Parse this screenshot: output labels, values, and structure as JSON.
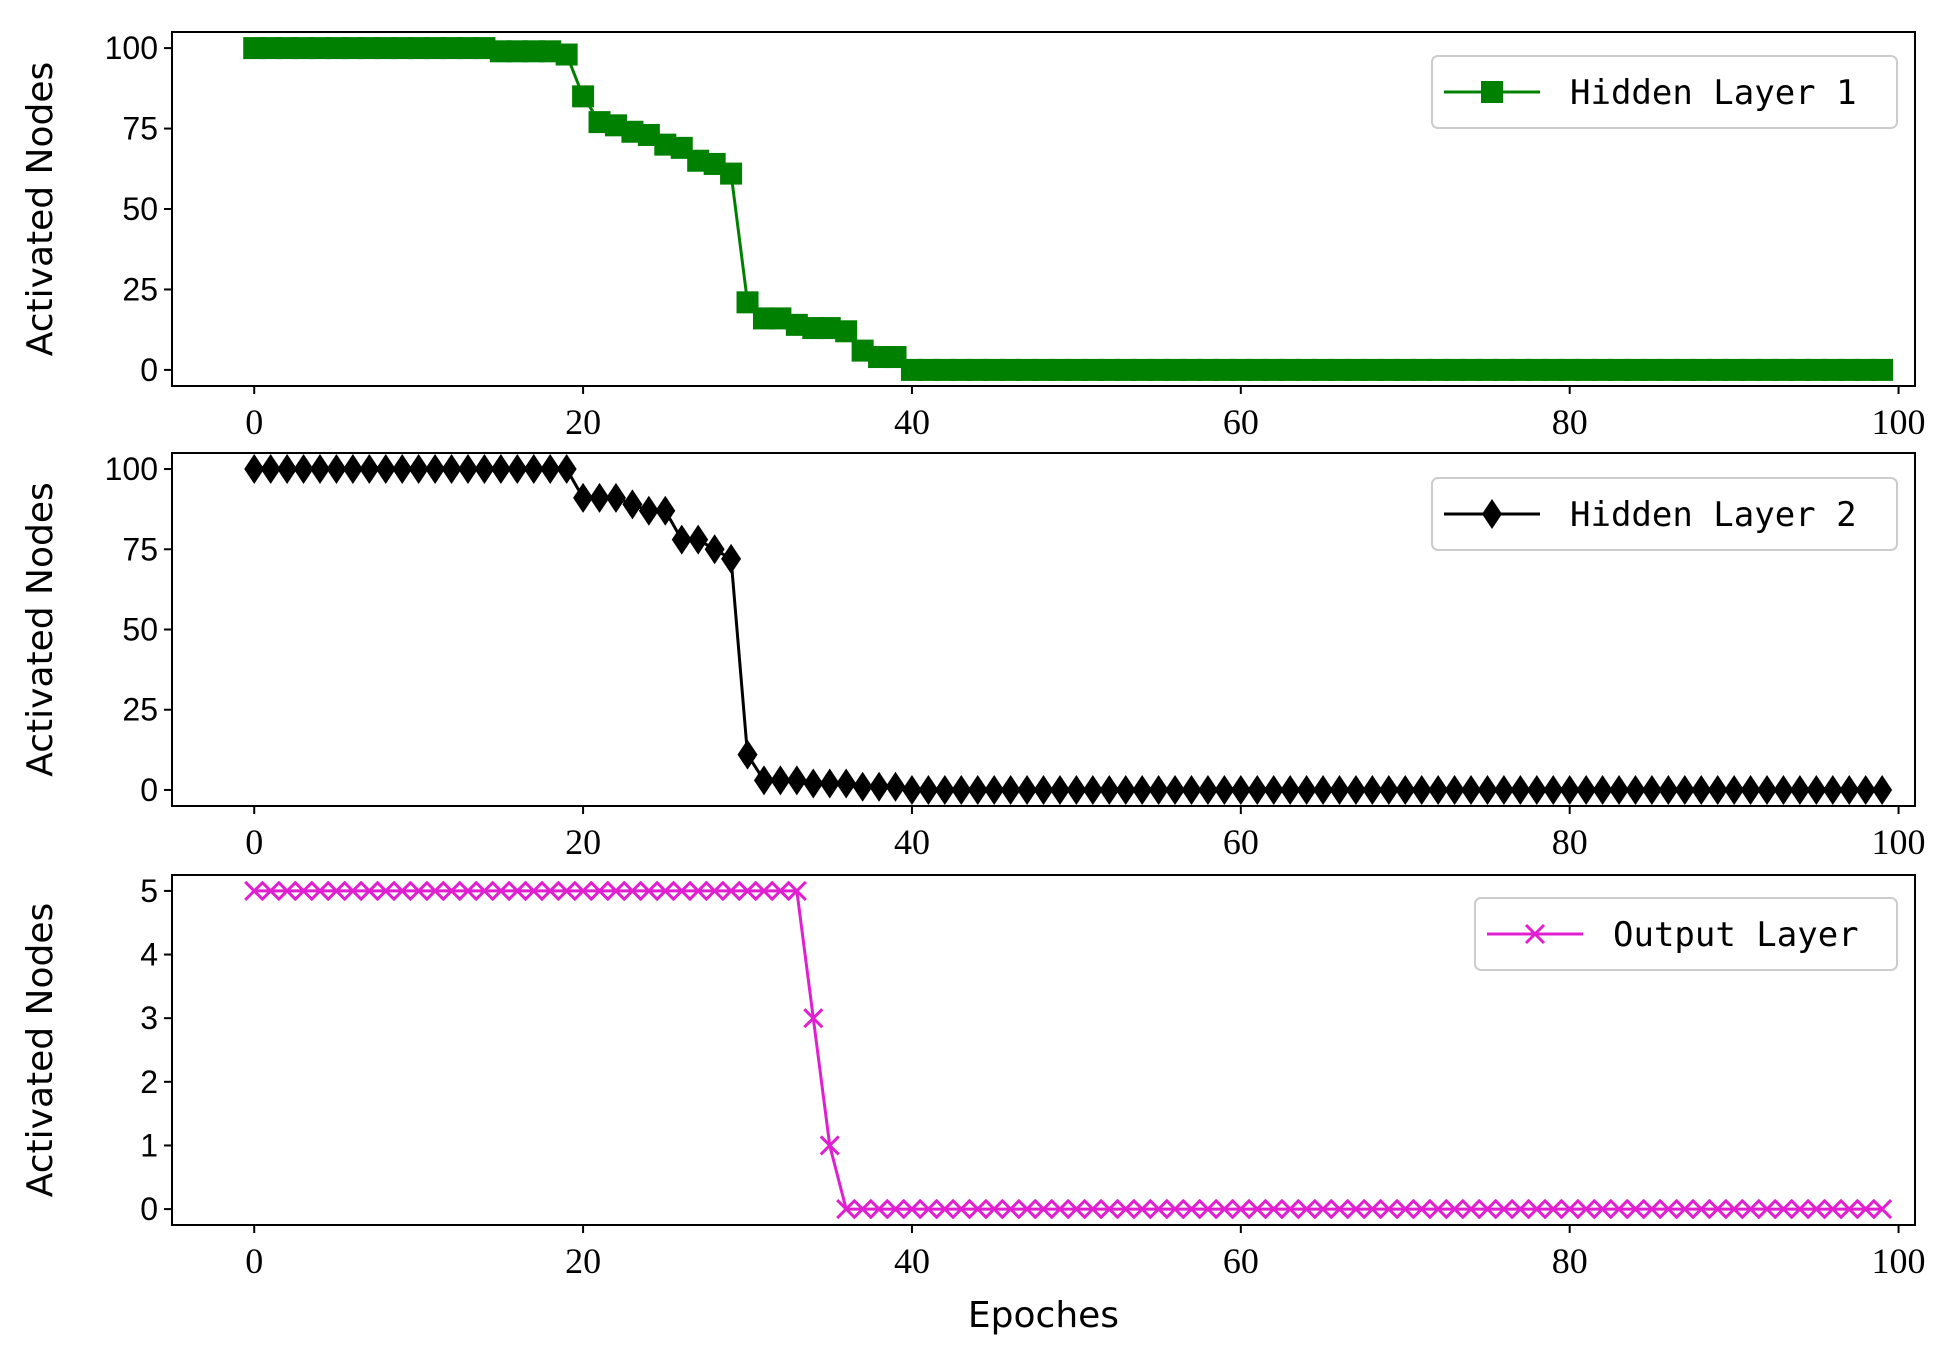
{
  "chart_data": [
    {
      "type": "line",
      "title": "",
      "xlabel": "",
      "ylabel": "Activated Nodes",
      "xlim": [
        -5,
        101
      ],
      "ylim": [
        -5,
        105
      ],
      "xticks": [
        0,
        20,
        40,
        60,
        80,
        100
      ],
      "yticks": [
        0,
        25,
        50,
        75,
        100
      ],
      "grid": false,
      "legend_position": "top-right",
      "series": [
        {
          "name": "Hidden Layer 1",
          "color": "#008000",
          "marker": "square",
          "x": [
            0,
            1,
            2,
            3,
            4,
            5,
            6,
            7,
            8,
            9,
            10,
            11,
            12,
            13,
            14,
            15,
            16,
            17,
            18,
            19,
            20,
            21,
            22,
            23,
            24,
            25,
            26,
            27,
            28,
            29,
            30,
            31,
            32,
            33,
            34,
            35,
            36,
            37,
            38,
            39,
            40,
            41,
            42,
            43,
            44,
            45,
            46,
            47,
            48,
            49,
            50,
            51,
            52,
            53,
            54,
            55,
            56,
            57,
            58,
            59,
            60,
            61,
            62,
            63,
            64,
            65,
            66,
            67,
            68,
            69,
            70,
            71,
            72,
            73,
            74,
            75,
            76,
            77,
            78,
            79,
            80,
            81,
            82,
            83,
            84,
            85,
            86,
            87,
            88,
            89,
            90,
            91,
            92,
            93,
            94,
            95,
            96,
            97,
            98,
            99
          ],
          "values": [
            100,
            100,
            100,
            100,
            100,
            100,
            100,
            100,
            100,
            100,
            100,
            100,
            100,
            100,
            100,
            99,
            99,
            99,
            99,
            98,
            85,
            77,
            76,
            74,
            73,
            70,
            69,
            65,
            64,
            61,
            21,
            16,
            16,
            14,
            13,
            13,
            12,
            6,
            4,
            4,
            0,
            0,
            0,
            0,
            0,
            0,
            0,
            0,
            0,
            0,
            0,
            0,
            0,
            0,
            0,
            0,
            0,
            0,
            0,
            0,
            0,
            0,
            0,
            0,
            0,
            0,
            0,
            0,
            0,
            0,
            0,
            0,
            0,
            0,
            0,
            0,
            0,
            0,
            0,
            0,
            0,
            0,
            0,
            0,
            0,
            0,
            0,
            0,
            0,
            0,
            0,
            0,
            0,
            0,
            0,
            0,
            0,
            0,
            0,
            0
          ]
        }
      ]
    },
    {
      "type": "line",
      "title": "",
      "xlabel": "",
      "ylabel": "Activated Nodes",
      "xlim": [
        -5,
        101
      ],
      "ylim": [
        -5,
        105
      ],
      "xticks": [
        0,
        20,
        40,
        60,
        80,
        100
      ],
      "yticks": [
        0,
        25,
        50,
        75,
        100
      ],
      "grid": false,
      "legend_position": "top-right",
      "series": [
        {
          "name": "Hidden Layer 2",
          "color": "#000000",
          "marker": "diamond",
          "x": [
            0,
            1,
            2,
            3,
            4,
            5,
            6,
            7,
            8,
            9,
            10,
            11,
            12,
            13,
            14,
            15,
            16,
            17,
            18,
            19,
            20,
            21,
            22,
            23,
            24,
            25,
            26,
            27,
            28,
            29,
            30,
            31,
            32,
            33,
            34,
            35,
            36,
            37,
            38,
            39,
            40,
            41,
            42,
            43,
            44,
            45,
            46,
            47,
            48,
            49,
            50,
            51,
            52,
            53,
            54,
            55,
            56,
            57,
            58,
            59,
            60,
            61,
            62,
            63,
            64,
            65,
            66,
            67,
            68,
            69,
            70,
            71,
            72,
            73,
            74,
            75,
            76,
            77,
            78,
            79,
            80,
            81,
            82,
            83,
            84,
            85,
            86,
            87,
            88,
            89,
            90,
            91,
            92,
            93,
            94,
            95,
            96,
            97,
            98,
            99
          ],
          "values": [
            100,
            100,
            100,
            100,
            100,
            100,
            100,
            100,
            100,
            100,
            100,
            100,
            100,
            100,
            100,
            100,
            100,
            100,
            100,
            100,
            91,
            91,
            91,
            89,
            87,
            87,
            78,
            78,
            75,
            72,
            11,
            3,
            3,
            3,
            2,
            2,
            2,
            1,
            1,
            1,
            0,
            0,
            0,
            0,
            0,
            0,
            0,
            0,
            0,
            0,
            0,
            0,
            0,
            0,
            0,
            0,
            0,
            0,
            0,
            0,
            0,
            0,
            0,
            0,
            0,
            0,
            0,
            0,
            0,
            0,
            0,
            0,
            0,
            0,
            0,
            0,
            0,
            0,
            0,
            0,
            0,
            0,
            0,
            0,
            0,
            0,
            0,
            0,
            0,
            0,
            0,
            0,
            0,
            0,
            0,
            0,
            0,
            0,
            0,
            0
          ]
        }
      ]
    },
    {
      "type": "line",
      "title": "",
      "xlabel": "Epoches",
      "ylabel": "Activated Nodes",
      "xlim": [
        -5,
        101
      ],
      "ylim": [
        -0.25,
        5.25
      ],
      "xticks": [
        0,
        20,
        40,
        60,
        80,
        100
      ],
      "yticks": [
        0,
        1,
        2,
        3,
        4,
        5
      ],
      "grid": false,
      "legend_position": "top-right",
      "series": [
        {
          "name": "Output Layer",
          "color": "#e020d0",
          "marker": "x",
          "x": [
            0,
            1,
            2,
            3,
            4,
            5,
            6,
            7,
            8,
            9,
            10,
            11,
            12,
            13,
            14,
            15,
            16,
            17,
            18,
            19,
            20,
            21,
            22,
            23,
            24,
            25,
            26,
            27,
            28,
            29,
            30,
            31,
            32,
            33,
            34,
            35,
            36,
            37,
            38,
            39,
            40,
            41,
            42,
            43,
            44,
            45,
            46,
            47,
            48,
            49,
            50,
            51,
            52,
            53,
            54,
            55,
            56,
            57,
            58,
            59,
            60,
            61,
            62,
            63,
            64,
            65,
            66,
            67,
            68,
            69,
            70,
            71,
            72,
            73,
            74,
            75,
            76,
            77,
            78,
            79,
            80,
            81,
            82,
            83,
            84,
            85,
            86,
            87,
            88,
            89,
            90,
            91,
            92,
            93,
            94,
            95,
            96,
            97,
            98,
            99
          ],
          "values": [
            5,
            5,
            5,
            5,
            5,
            5,
            5,
            5,
            5,
            5,
            5,
            5,
            5,
            5,
            5,
            5,
            5,
            5,
            5,
            5,
            5,
            5,
            5,
            5,
            5,
            5,
            5,
            5,
            5,
            5,
            5,
            5,
            5,
            5,
            3,
            1,
            0,
            0,
            0,
            0,
            0,
            0,
            0,
            0,
            0,
            0,
            0,
            0,
            0,
            0,
            0,
            0,
            0,
            0,
            0,
            0,
            0,
            0,
            0,
            0,
            0,
            0,
            0,
            0,
            0,
            0,
            0,
            0,
            0,
            0,
            0,
            0,
            0,
            0,
            0,
            0,
            0,
            0,
            0,
            0,
            0,
            0,
            0,
            0,
            0,
            0,
            0,
            0,
            0,
            0,
            0,
            0,
            0,
            0,
            0,
            0,
            0,
            0,
            0,
            0
          ]
        }
      ]
    }
  ]
}
